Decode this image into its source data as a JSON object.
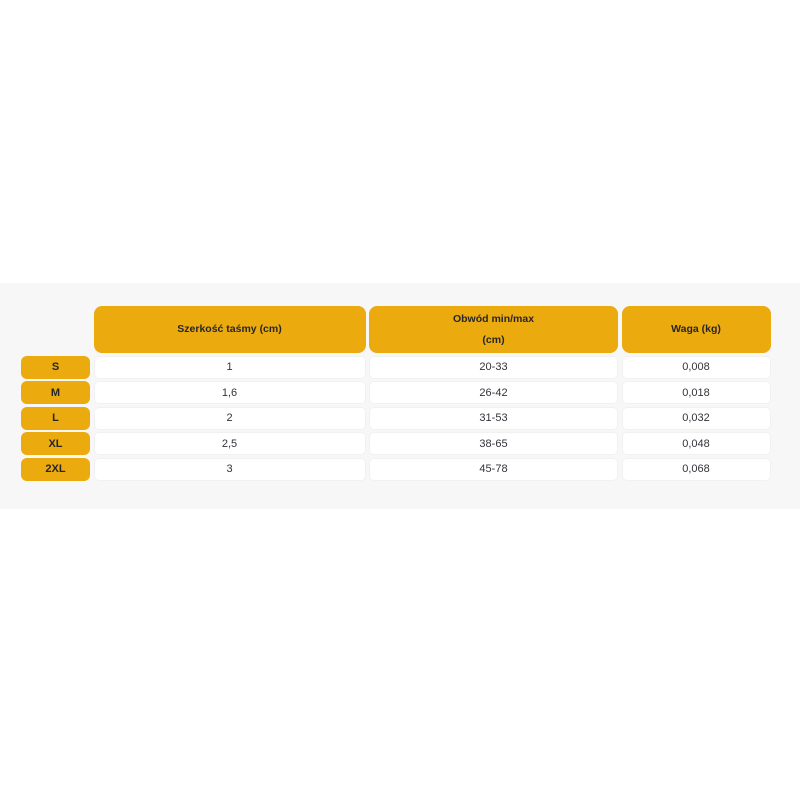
{
  "page": {
    "background": "#ffffff"
  },
  "colors": {
    "accent_yellow": "#ebaa0e",
    "header_text": "#26262c",
    "cell_text": "#33333a",
    "section_background": "#f7f7f8",
    "cell_background": "#ffffff"
  },
  "table": {
    "columns": [
      {
        "label": "Szerkość taśmy (cm)",
        "label_line2": ""
      },
      {
        "label": "Obwód min/max",
        "label_line2": "(cm)"
      },
      {
        "label": "Waga (kg)",
        "label_line2": ""
      }
    ],
    "rows": [
      {
        "size": "S",
        "tape_width": "1",
        "circumference": "20-33",
        "weight": "0,008"
      },
      {
        "size": "M",
        "tape_width": "1,6",
        "circumference": "26-42",
        "weight": "0,018"
      },
      {
        "size": "L",
        "tape_width": "2",
        "circumference": "31-53",
        "weight": "0,032"
      },
      {
        "size": "XL",
        "tape_width": "2,5",
        "circumference": "38-65",
        "weight": "0,048"
      },
      {
        "size": "2XL",
        "tape_width": "3",
        "circumference": "45-78",
        "weight": "0,068"
      }
    ]
  }
}
